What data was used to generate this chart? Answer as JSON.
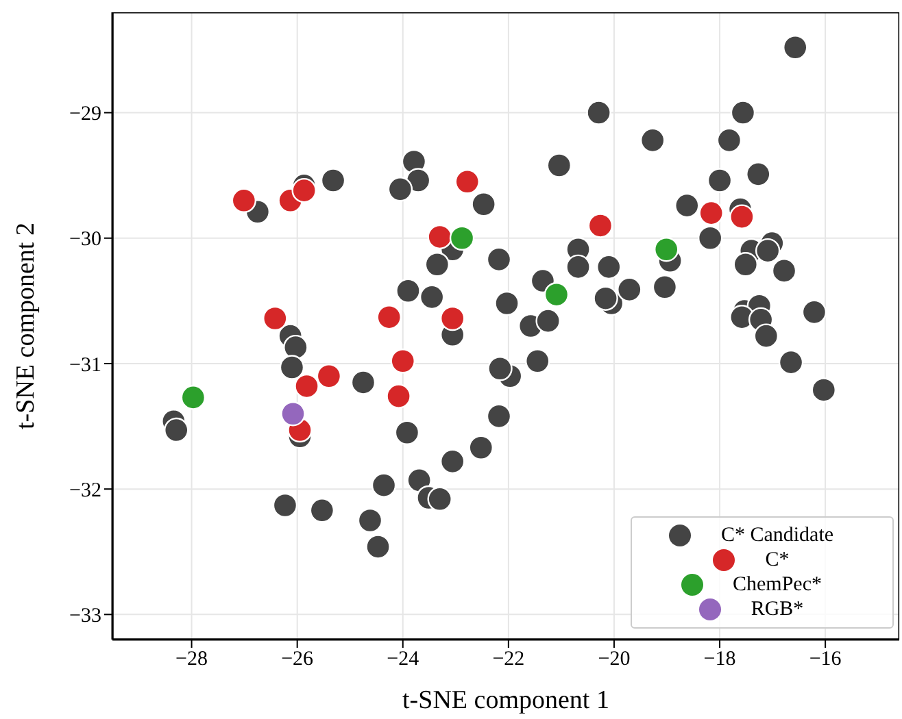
{
  "chart_data": {
    "type": "scatter",
    "xlabel": "t-SNE component 1",
    "ylabel": "t-SNE component 2",
    "xlim": [
      -29.5,
      -14.6
    ],
    "xticks": [
      -28,
      -26,
      -24,
      -22,
      -20,
      -18,
      -16
    ],
    "ylim": [
      -33.2,
      -28.2
    ],
    "yticks": [
      -33,
      -32,
      -31,
      -30,
      -29
    ],
    "grid": true,
    "legend": "bottom right",
    "marker": "circle",
    "series": [
      {
        "name": "C* Candidate",
        "color": "#444444",
        "x": [
          -16.57,
          -20.29,
          -17.56,
          -19.27,
          -17.82,
          -21.04,
          -18.0,
          -17.27,
          -18.62,
          -17.61,
          -18.18,
          -22.18,
          -20.68,
          -20.68,
          -20.1,
          -18.94,
          -17.4,
          -17.01,
          -17.09,
          -17.51,
          -16.78,
          -21.35,
          -22.03,
          -21.58,
          -21.25,
          -20.05,
          -20.16,
          -19.71,
          -19.04,
          -17.53,
          -17.25,
          -16.21,
          -17.58,
          -17.22,
          -17.12,
          -16.65,
          -16.03,
          -21.45,
          -21.97,
          -22.18,
          -26.75,
          -25.87,
          -25.32,
          -23.79,
          -23.71,
          -24.05,
          -22.47,
          -23.06,
          -23.35,
          -23.9,
          -23.45,
          -26.13,
          -26.03,
          -26.1,
          -24.75,
          -23.06,
          -22.16,
          -28.34,
          -28.29,
          -25.95,
          -23.92,
          -22.52,
          -23.06,
          -24.36,
          -23.69,
          -23.51,
          -23.3,
          -26.23,
          -25.53,
          -24.62,
          -24.47
        ],
        "values": [
          -28.48,
          -29.0,
          -29.0,
          -29.22,
          -29.22,
          -29.42,
          -29.54,
          -29.49,
          -29.74,
          -29.77,
          -30.0,
          -30.17,
          -30.09,
          -30.23,
          -30.23,
          -30.18,
          -30.1,
          -30.04,
          -30.1,
          -30.21,
          -30.26,
          -30.34,
          -30.52,
          -30.7,
          -30.66,
          -30.52,
          -30.48,
          -30.41,
          -30.39,
          -30.58,
          -30.54,
          -30.59,
          -30.63,
          -30.65,
          -30.78,
          -30.99,
          -31.21,
          -30.98,
          -31.1,
          -31.42,
          -29.79,
          -29.58,
          -29.54,
          -29.39,
          -29.54,
          -29.61,
          -29.73,
          -30.09,
          -30.21,
          -30.42,
          -30.47,
          -30.78,
          -30.87,
          -31.03,
          -31.15,
          -30.77,
          -31.04,
          -31.46,
          -31.53,
          -31.58,
          -31.55,
          -31.67,
          -31.78,
          -31.97,
          -31.93,
          -32.07,
          -32.08,
          -32.13,
          -32.17,
          -32.25,
          -32.46
        ]
      },
      {
        "name": "C*",
        "color": "#d62728",
        "x": [
          -18.16,
          -17.58,
          -20.26,
          -27.01,
          -26.13,
          -25.87,
          -22.78,
          -23.3,
          -26.42,
          -24.26,
          -23.06,
          -25.82,
          -25.4,
          -24.0,
          -24.08,
          -25.95
        ],
        "values": [
          -29.8,
          -29.83,
          -29.9,
          -29.7,
          -29.7,
          -29.62,
          -29.55,
          -29.99,
          -30.64,
          -30.63,
          -30.64,
          -31.18,
          -31.1,
          -30.98,
          -31.26,
          -31.53
        ]
      },
      {
        "name": "ChemPec*",
        "color": "#2ca02c",
        "x": [
          -19.01,
          -21.09,
          -22.88,
          -27.97
        ],
        "values": [
          -30.09,
          -30.45,
          -30.0,
          -31.27
        ]
      },
      {
        "name": "RGB*",
        "color": "#9467bd",
        "x": [
          -26.08
        ],
        "values": [
          -31.4
        ]
      }
    ]
  }
}
